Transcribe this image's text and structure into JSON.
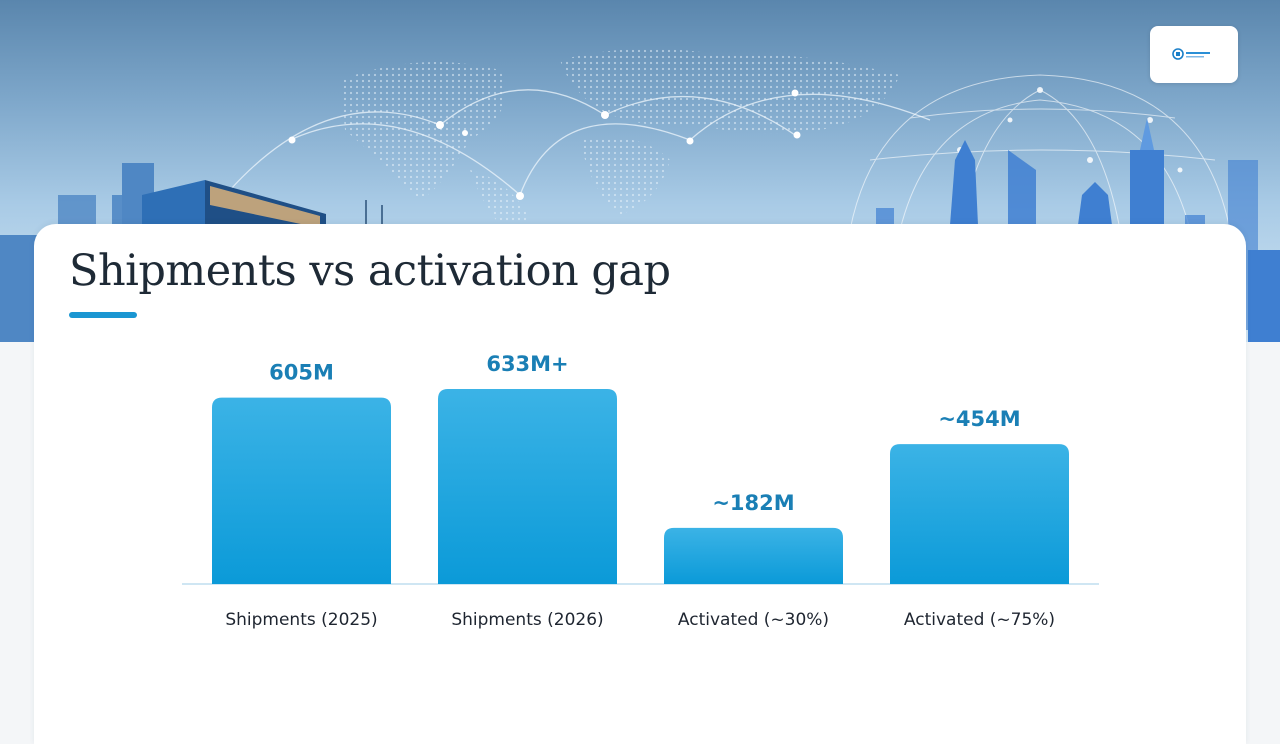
{
  "header": {
    "title": "Shipments vs activation gap",
    "logo": "company-logo-icon"
  },
  "colors": {
    "bar_top": "#3bb3e6",
    "bar_bottom": "#0b9ad8",
    "value_label": "#1a7fb5",
    "accent": "#1a96d2"
  },
  "chart_data": {
    "type": "bar",
    "title": "Shipments vs activation gap",
    "xlabel": "",
    "ylabel": "",
    "categories": [
      "Shipments (2025)",
      "Shipments (2026)",
      "Activated (~30%)",
      "Activated (~75%)"
    ],
    "values": [
      605,
      633,
      182,
      454
    ],
    "unit": "M",
    "value_labels": [
      "605M",
      "633M+",
      "~182M",
      "~454M"
    ],
    "ylim": [
      0,
      633
    ],
    "grid": false,
    "legend": "none"
  }
}
